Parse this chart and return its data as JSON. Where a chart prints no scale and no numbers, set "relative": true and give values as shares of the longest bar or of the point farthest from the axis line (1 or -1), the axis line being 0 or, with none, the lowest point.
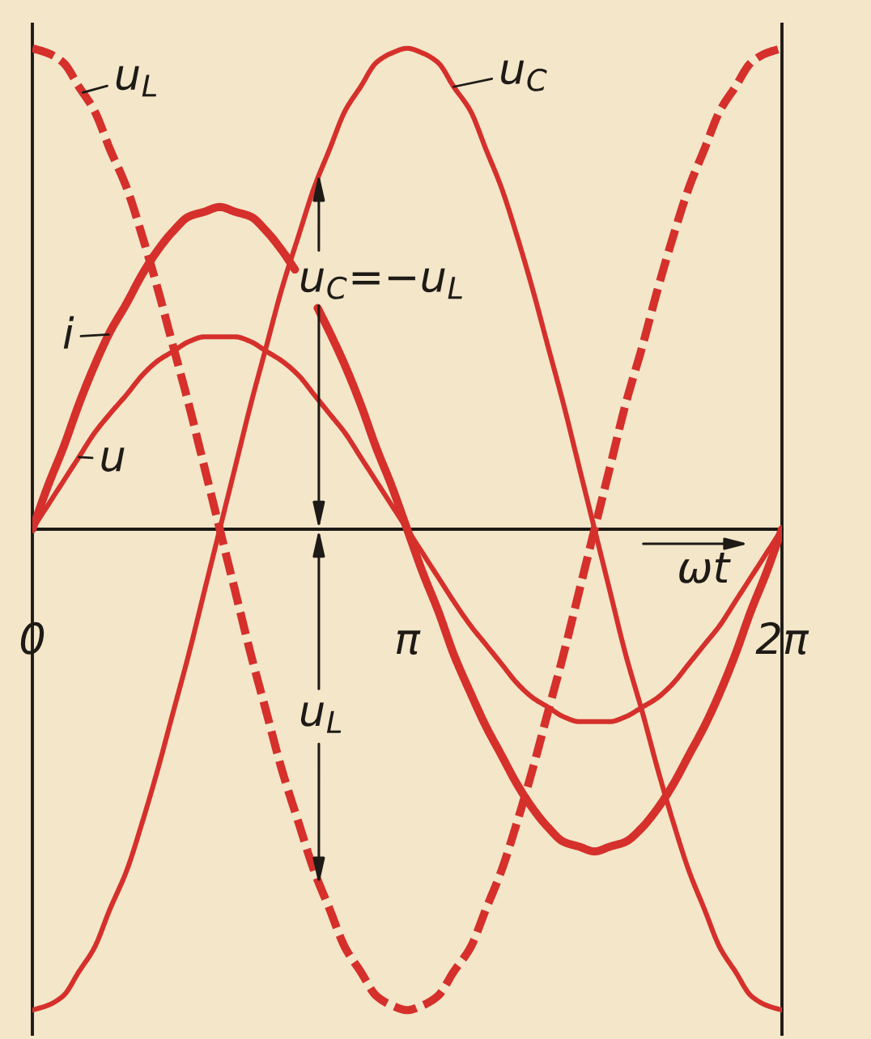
{
  "chart_data": {
    "type": "line",
    "relative": true,
    "xlabel": "ωt",
    "line_style": "solid",
    "tick_labels": "x",
    "x": [
      0,
      0.13,
      0.26,
      0.39,
      0.52,
      0.65,
      0.79,
      0.92,
      1.05,
      1.18,
      1.31,
      1.44,
      1.57,
      1.7,
      1.83,
      1.96,
      2.09,
      2.23,
      2.36,
      2.49,
      2.62,
      2.75,
      2.88,
      3.01,
      3.14,
      3.27,
      3.4,
      3.53,
      3.67,
      3.8,
      3.93,
      4.06,
      4.19,
      4.32,
      4.45,
      4.58,
      4.71,
      4.84,
      4.97,
      5.11,
      5.24,
      5.37,
      5.5,
      5.63,
      5.76,
      5.89,
      6.02,
      6.15,
      6.28
    ],
    "xlim": [
      0,
      6.28
    ],
    "xticks": [
      0,
      {
        "value": 3.14,
        "label": "π"
      },
      {
        "value": 6.28,
        "label": "2π"
      }
    ],
    "series": [
      {
        "name": "u$_{L}$",
        "color": "#d5302b",
        "line_style": "dashed",
        "values": [
          1,
          0.99,
          0.97,
          0.92,
          0.87,
          0.79,
          0.71,
          0.61,
          0.5,
          0.38,
          0.26,
          0.13,
          0,
          -0.13,
          -0.26,
          -0.38,
          -0.5,
          -0.61,
          -0.71,
          -0.79,
          -0.87,
          -0.92,
          -0.97,
          -0.99,
          -1,
          -0.99,
          -0.97,
          -0.92,
          -0.87,
          -0.79,
          -0.71,
          -0.61,
          -0.5,
          -0.38,
          -0.26,
          -0.13,
          0,
          0.13,
          0.26,
          0.38,
          0.5,
          0.61,
          0.71,
          0.79,
          0.87,
          0.92,
          0.97,
          0.99,
          1
        ]
      },
      {
        "name": "u$_{C}$",
        "color": "#d5302b",
        "values": [
          -1,
          -0.99,
          -0.97,
          -0.92,
          -0.87,
          -0.79,
          -0.71,
          -0.61,
          -0.5,
          -0.38,
          -0.26,
          -0.13,
          0,
          0.13,
          0.26,
          0.38,
          0.5,
          0.61,
          0.71,
          0.79,
          0.87,
          0.92,
          0.97,
          0.99,
          1,
          0.99,
          0.97,
          0.92,
          0.87,
          0.79,
          0.71,
          0.61,
          0.5,
          0.38,
          0.26,
          0.13,
          0,
          -0.13,
          -0.26,
          -0.38,
          -0.5,
          -0.61,
          -0.71,
          -0.79,
          -0.87,
          -0.92,
          -0.97,
          -0.99,
          -1
        ]
      },
      {
        "name": "i",
        "color": "#d5302b",
        "x": [
          0,
          0.13,
          0.26,
          0.39,
          0.52,
          0.65,
          0.79,
          0.92,
          1.05,
          1.18,
          1.31,
          1.44,
          1.57,
          1.7,
          1.83,
          1.96,
          2.09,
          2.2,
          2.29,
          2.39,
          2.49,
          2.62,
          2.75,
          2.88,
          3.01,
          3.14,
          3.27,
          3.4,
          3.53,
          3.67,
          3.8,
          3.93,
          4.06,
          4.19,
          4.32,
          4.45,
          4.58,
          4.71,
          4.84,
          4.97,
          5.11,
          5.24,
          5.37,
          5.5,
          5.63,
          5.76,
          5.89,
          6.02,
          6.15,
          6.28
        ],
        "values": [
          0,
          0.09,
          0.17,
          0.26,
          0.34,
          0.41,
          0.47,
          0.53,
          0.58,
          0.62,
          0.65,
          0.66,
          0.67,
          0.66,
          0.65,
          0.62,
          0.58,
          0.54,
          null,
          0.46,
          0.41,
          0.34,
          0.26,
          0.17,
          0.09,
          0,
          -0.09,
          -0.17,
          -0.26,
          -0.34,
          -0.41,
          -0.47,
          -0.53,
          -0.58,
          -0.62,
          -0.65,
          -0.66,
          -0.67,
          -0.66,
          -0.65,
          -0.62,
          -0.58,
          -0.53,
          -0.47,
          -0.41,
          -0.34,
          -0.26,
          -0.17,
          -0.09,
          0
        ]
      },
      {
        "name": "u",
        "color": "#d5302b",
        "values": [
          0,
          0.05,
          0.1,
          0.15,
          0.2,
          0.24,
          0.28,
          0.32,
          0.35,
          0.37,
          0.39,
          0.4,
          0.4,
          0.4,
          0.39,
          0.37,
          0.35,
          0.32,
          0.28,
          0.24,
          0.2,
          0.15,
          0.1,
          0.05,
          0,
          -0.05,
          -0.1,
          -0.15,
          -0.2,
          -0.24,
          -0.28,
          -0.32,
          -0.35,
          -0.37,
          -0.39,
          -0.4,
          -0.4,
          -0.4,
          -0.39,
          -0.37,
          -0.35,
          -0.32,
          -0.28,
          -0.24,
          -0.2,
          -0.15,
          -0.1,
          -0.05,
          0
        ]
      }
    ],
    "annotations": [
      {
        "text": "u$_{C}$=−u$_{L}$",
        "x": 2.4,
        "y": 0.74
      },
      {
        "text": "u$_{L}$",
        "x": 2.4,
        "y": -0.74
      }
    ]
  }
}
